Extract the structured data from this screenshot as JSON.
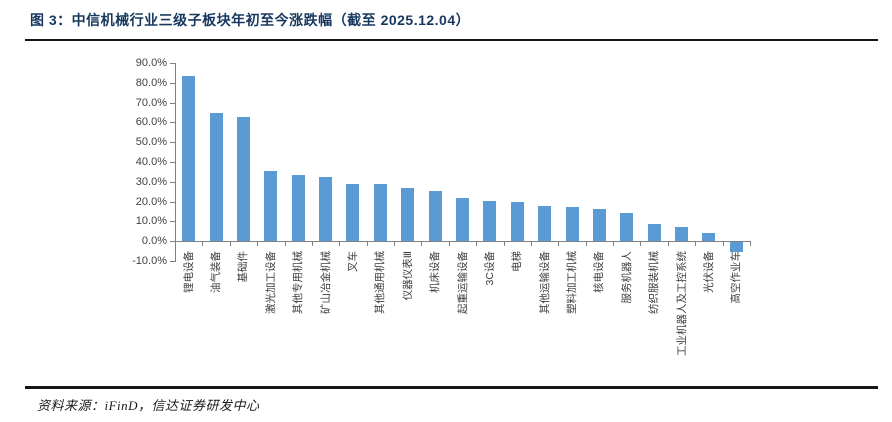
{
  "figure": {
    "title": "图 3：中信机械行业三级子板块年初至今涨跌幅（截至 2025.12.04）",
    "source": "资料来源：iFinD，信达证券研发中心"
  },
  "chart_data": {
    "type": "bar",
    "title": "中信机械行业三级子板块年初至今涨跌幅（截至 2025.12.04）",
    "categories": [
      "锂电设备",
      "油气装备",
      "基础件",
      "激光加工设备",
      "其他专用机械",
      "矿山冶金机械",
      "叉车",
      "其他通用机械",
      "仪器仪表Ⅲ",
      "机床设备",
      "起重运输设备",
      "3C设备",
      "电梯",
      "其他运输设备",
      "塑料加工机械",
      "核电设备",
      "服务机器人",
      "纺织服装机械",
      "工业机器人及工控系统",
      "光伏设备",
      "高空作业车"
    ],
    "values": [
      83.5,
      64.5,
      62.5,
      35.5,
      33.5,
      32.5,
      29.0,
      28.7,
      27.0,
      25.5,
      22.0,
      20.5,
      20.0,
      18.0,
      17.5,
      16.5,
      14.0,
      8.5,
      7.0,
      4.0,
      -5.0
    ],
    "unit": "%",
    "ylim": [
      -10,
      90
    ],
    "ytick_step": 10,
    "ytick_labels": [
      "90.0%",
      "80.0%",
      "70.0%",
      "60.0%",
      "50.0%",
      "40.0%",
      "30.0%",
      "20.0%",
      "10.0%",
      "0.0%",
      "-10.0%"
    ],
    "grid": false,
    "legend": "none",
    "bar_color": "#5B9BD5",
    "axis_color": "#808080",
    "tick_label_color": "#3f3f3f"
  }
}
